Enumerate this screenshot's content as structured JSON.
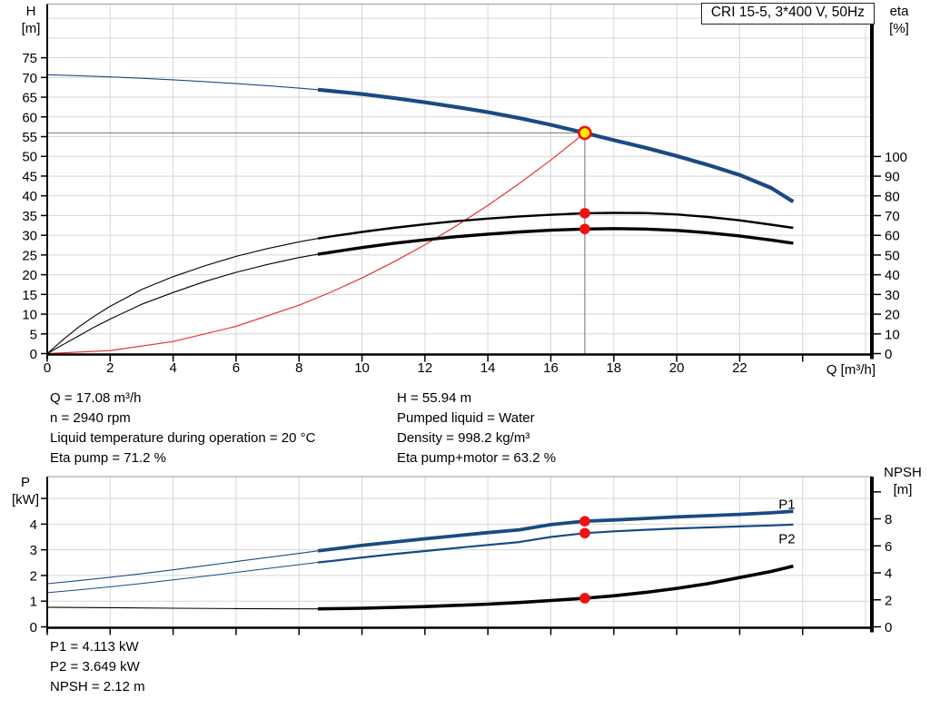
{
  "title_box": {
    "label": "CRI 15-5, 3*400 V, 50Hz"
  },
  "colors": {
    "curve_blue": "#194b82",
    "curve_black": "#000000",
    "curve_red": "#e53333",
    "dot_red": "#ee1111",
    "dot_yellow": "#ffee00",
    "grid": "#d6d6d6",
    "crosshair": "#858585",
    "axis": "#000000",
    "label_blue": "#194b82"
  },
  "axis_labels": {
    "h1": "H",
    "h2": "[m]",
    "eta1": "eta",
    "eta2": "[%]",
    "q": "Q [m³/h]",
    "p1": "P",
    "p2": "[kW]",
    "npsh1": "NPSH",
    "npsh2": "[m]"
  },
  "info_left": [
    "Q = 17.08 m³/h",
    "n = 2940 rpm",
    "Liquid temperature during operation = 20 °C",
    "Eta pump = 71.2 %"
  ],
  "info_right": [
    "H = 55.94 m",
    "Pumped liquid = Water",
    "Density = 998.2 kg/m³",
    "Eta pump+motor = 63.2 %"
  ],
  "info_bottom": [
    "P1 = 4.113 kW",
    "P2 = 3.649 kW",
    "NPSH = 2.12 m"
  ],
  "operating_point": {
    "Q": 17.08,
    "H": 55.94,
    "eta_pump": 71.2,
    "eta_pump_motor": 63.2,
    "P1": 4.113,
    "P2": 3.649,
    "NPSH": 2.12
  },
  "chart_data": [
    {
      "type": "line",
      "title": "CRI 15-5, 3*400 V, 50Hz",
      "x_axis": {
        "label": "Q [m³/h]",
        "min": 0,
        "max": 26.2,
        "grid": [
          2,
          4,
          6,
          8,
          10,
          12,
          14,
          16,
          18,
          20,
          22,
          24,
          26
        ],
        "tick_marks": [
          0,
          2,
          4,
          6,
          8,
          10,
          12,
          14,
          16,
          18,
          20,
          22,
          24
        ],
        "tick_labels": [
          0,
          2,
          4,
          6,
          8,
          10,
          12,
          14,
          16,
          18,
          20,
          22
        ]
      },
      "y_left": {
        "label": "H [m]",
        "min": 0,
        "max": 88.6,
        "grid": [
          5,
          10,
          15,
          20,
          25,
          30,
          35,
          40,
          45,
          50,
          55,
          60,
          65,
          70,
          75,
          80,
          85
        ],
        "tick_marks": [
          0,
          5,
          10,
          15,
          20,
          25,
          30,
          35,
          40,
          45,
          50,
          55,
          60,
          65,
          70,
          75
        ],
        "tick_labels": [
          0,
          5,
          10,
          15,
          20,
          25,
          30,
          35,
          40,
          45,
          50,
          55,
          60,
          65,
          70,
          75
        ]
      },
      "y_right": {
        "label": "eta [%]",
        "min": 0,
        "max": 177.3,
        "grid": [],
        "tick_marks": [
          0,
          10,
          20,
          30,
          40,
          50,
          60,
          70,
          80,
          90,
          100
        ],
        "tick_labels": [
          0,
          10,
          20,
          30,
          40,
          50,
          60,
          70,
          80,
          90,
          100
        ]
      },
      "crosshair": {
        "q": 17.08,
        "v": 55.94
      },
      "series": [
        {
          "name": "system-curve",
          "axis": "left",
          "color": "curve_red",
          "width": 1.2,
          "points": [
            [
              0,
              0
            ],
            [
              2,
              0.77
            ],
            [
              4,
              3.07
            ],
            [
              6,
              6.9
            ],
            [
              8,
              12.27
            ],
            [
              9,
              15.53
            ],
            [
              10,
              19.17
            ],
            [
              11,
              23.2
            ],
            [
              12,
              27.6
            ],
            [
              13,
              32.4
            ],
            [
              14,
              37.57
            ],
            [
              15,
              43.12
            ],
            [
              16,
              49.06
            ],
            [
              17.08,
              55.94
            ]
          ]
        },
        {
          "name": "eta-pump",
          "axis": "right",
          "color": "curve_black",
          "width": 1.1,
          "bold_from": 8.6,
          "bold_width": 2.4,
          "points": [
            [
              0,
              0
            ],
            [
              0.5,
              7
            ],
            [
              1,
              13.5
            ],
            [
              1.5,
              19
            ],
            [
              2,
              24
            ],
            [
              3,
              32.5
            ],
            [
              4,
              39
            ],
            [
              5,
              44.5
            ],
            [
              6,
              49.3
            ],
            [
              7,
              53.3
            ],
            [
              8,
              56.7
            ],
            [
              8.6,
              58.4
            ],
            [
              9,
              59.4
            ],
            [
              10,
              61.7
            ],
            [
              11,
              63.8
            ],
            [
              12,
              65.6
            ],
            [
              13,
              67.2
            ],
            [
              14,
              68.5
            ],
            [
              15,
              69.6
            ],
            [
              16,
              70.4
            ],
            [
              17.08,
              71.2
            ],
            [
              18,
              71.4
            ],
            [
              19,
              71.3
            ],
            [
              20,
              70.6
            ],
            [
              21,
              69.3
            ],
            [
              22,
              67.6
            ],
            [
              23,
              65.4
            ],
            [
              23.7,
              63.8
            ]
          ]
        },
        {
          "name": "eta-pump-motor",
          "axis": "right",
          "color": "curve_black",
          "width": 1.1,
          "bold_from": 8.6,
          "bold_width": 3.4,
          "points": [
            [
              0,
              0
            ],
            [
              0.5,
              4.5
            ],
            [
              1,
              9
            ],
            [
              1.5,
              13.5
            ],
            [
              2,
              17.5
            ],
            [
              3,
              25
            ],
            [
              4,
              31
            ],
            [
              5,
              36.5
            ],
            [
              6,
              41.2
            ],
            [
              7,
              45.2
            ],
            [
              8,
              48.7
            ],
            [
              8.6,
              50.4
            ],
            [
              9,
              51.4
            ],
            [
              10,
              53.8
            ],
            [
              11,
              55.9
            ],
            [
              12,
              57.7
            ],
            [
              13,
              59.3
            ],
            [
              14,
              60.6
            ],
            [
              15,
              61.7
            ],
            [
              16,
              62.6
            ],
            [
              17.08,
              63.2
            ],
            [
              18,
              63.4
            ],
            [
              19,
              63.2
            ],
            [
              20,
              62.5
            ],
            [
              21,
              61.3
            ],
            [
              22,
              59.7
            ],
            [
              23,
              57.6
            ],
            [
              23.7,
              56.0
            ]
          ]
        },
        {
          "name": "head-curve",
          "axis": "left",
          "color": "curve_blue",
          "width": 1.1,
          "bold_from": 8.6,
          "bold_width": 4.2,
          "points": [
            [
              0,
              70.7
            ],
            [
              1,
              70.45
            ],
            [
              2,
              70.15
            ],
            [
              3,
              69.8
            ],
            [
              4,
              69.4
            ],
            [
              5,
              68.95
            ],
            [
              6,
              68.45
            ],
            [
              7,
              67.9
            ],
            [
              8,
              67.3
            ],
            [
              8.6,
              66.9
            ],
            [
              9,
              66.6
            ],
            [
              10,
              65.8
            ],
            [
              11,
              64.8
            ],
            [
              12,
              63.7
            ],
            [
              13,
              62.5
            ],
            [
              14,
              61.2
            ],
            [
              15,
              59.7
            ],
            [
              16,
              58.0
            ],
            [
              17.08,
              55.94
            ],
            [
              18,
              54.1
            ],
            [
              19,
              52.2
            ],
            [
              20,
              50.1
            ],
            [
              21,
              47.8
            ],
            [
              22,
              45.3
            ],
            [
              23,
              42.0
            ],
            [
              23.7,
              38.5
            ]
          ]
        }
      ],
      "dots": [
        {
          "name": "eta-pump-point",
          "q": 17.08,
          "v": 71.2,
          "axis": "right",
          "style": "point"
        },
        {
          "name": "eta-pump-motor-point",
          "q": 17.08,
          "v": 63.2,
          "axis": "right",
          "style": "point"
        },
        {
          "name": "duty-point",
          "q": 17.08,
          "v": 55.94,
          "axis": "left",
          "style": "duty"
        }
      ],
      "annotations": []
    },
    {
      "type": "line",
      "title": "Power and NPSH",
      "x_axis": {
        "label": "",
        "min": 0,
        "max": 26.2,
        "grid": [
          2,
          4,
          6,
          8,
          10,
          12,
          14,
          16,
          18,
          20,
          22,
          24,
          26
        ],
        "tick_marks": [
          0,
          2,
          4,
          6,
          8,
          10,
          12,
          14,
          16,
          18,
          20,
          22,
          24
        ],
        "tick_labels": []
      },
      "y_left": {
        "label": "P [kW]",
        "min": 0,
        "max": 5.85,
        "grid": [
          1,
          2,
          3,
          4,
          5
        ],
        "tick_marks": [
          0,
          1,
          2,
          3,
          4,
          5
        ],
        "tick_labels": [
          0,
          1,
          2,
          3,
          4
        ]
      },
      "y_right": {
        "label": "NPSH [m]",
        "min": 0,
        "max": 11.13,
        "grid": [],
        "tick_marks": [
          0,
          2,
          4,
          6,
          8,
          10
        ],
        "tick_labels": [
          0,
          2,
          4,
          6,
          8
        ]
      },
      "crosshair": null,
      "series": [
        {
          "name": "p1-curve",
          "axis": "left",
          "color": "curve_blue",
          "width": 1.1,
          "bold_from": 8.6,
          "bold_width": 3.8,
          "points": [
            [
              0,
              1.68
            ],
            [
              1,
              1.8
            ],
            [
              2,
              1.93
            ],
            [
              3,
              2.07
            ],
            [
              4,
              2.22
            ],
            [
              5,
              2.38
            ],
            [
              6,
              2.54
            ],
            [
              7,
              2.7
            ],
            [
              8,
              2.86
            ],
            [
              8.6,
              2.96
            ],
            [
              9,
              3.02
            ],
            [
              10,
              3.17
            ],
            [
              11,
              3.3
            ],
            [
              12,
              3.43
            ],
            [
              13,
              3.55
            ],
            [
              14,
              3.67
            ],
            [
              15,
              3.78
            ],
            [
              16,
              3.98
            ],
            [
              17.08,
              4.113
            ],
            [
              18,
              4.16
            ],
            [
              19,
              4.22
            ],
            [
              20,
              4.28
            ],
            [
              21,
              4.33
            ],
            [
              22,
              4.38
            ],
            [
              23,
              4.44
            ],
            [
              23.7,
              4.5
            ]
          ]
        },
        {
          "name": "p2-curve",
          "axis": "left",
          "color": "curve_blue",
          "width": 1.0,
          "bold_from": 8.6,
          "bold_width": 2.2,
          "points": [
            [
              0,
              1.33
            ],
            [
              1,
              1.44
            ],
            [
              2,
              1.56
            ],
            [
              3,
              1.69
            ],
            [
              4,
              1.83
            ],
            [
              5,
              1.97
            ],
            [
              6,
              2.12
            ],
            [
              7,
              2.27
            ],
            [
              8,
              2.42
            ],
            [
              8.6,
              2.51
            ],
            [
              9,
              2.56
            ],
            [
              10,
              2.7
            ],
            [
              11,
              2.83
            ],
            [
              12,
              2.95
            ],
            [
              13,
              3.07
            ],
            [
              14,
              3.19
            ],
            [
              15,
              3.3
            ],
            [
              16,
              3.5
            ],
            [
              17.08,
              3.649
            ],
            [
              18,
              3.72
            ],
            [
              19,
              3.78
            ],
            [
              20,
              3.83
            ],
            [
              21,
              3.87
            ],
            [
              22,
              3.91
            ],
            [
              23,
              3.95
            ],
            [
              23.7,
              3.98
            ]
          ]
        },
        {
          "name": "npsh-curve",
          "axis": "right",
          "color": "curve_black",
          "width": 1.1,
          "bold_from": 8.6,
          "bold_width": 3.6,
          "points": [
            [
              0,
              1.45
            ],
            [
              2,
              1.42
            ],
            [
              4,
              1.38
            ],
            [
              6,
              1.35
            ],
            [
              8,
              1.33
            ],
            [
              8.6,
              1.33
            ],
            [
              10,
              1.38
            ],
            [
              12,
              1.5
            ],
            [
              14,
              1.68
            ],
            [
              15,
              1.8
            ],
            [
              16,
              1.95
            ],
            [
              17.08,
              2.12
            ],
            [
              18,
              2.3
            ],
            [
              19,
              2.55
            ],
            [
              20,
              2.85
            ],
            [
              21,
              3.2
            ],
            [
              22,
              3.65
            ],
            [
              23,
              4.1
            ],
            [
              23.7,
              4.5
            ]
          ]
        }
      ],
      "dots": [
        {
          "name": "p1-point",
          "q": 17.08,
          "v": 4.113,
          "axis": "left",
          "style": "point"
        },
        {
          "name": "p2-point",
          "q": 17.08,
          "v": 3.649,
          "axis": "left",
          "style": "point"
        },
        {
          "name": "npsh-point",
          "q": 17.08,
          "v": 2.12,
          "axis": "right",
          "style": "point"
        }
      ],
      "annotations": [
        {
          "text": "P1",
          "q": 23.5,
          "v": 4.78,
          "axis": "left"
        },
        {
          "text": "P2",
          "q": 23.5,
          "v": 3.42,
          "axis": "left"
        }
      ]
    }
  ]
}
